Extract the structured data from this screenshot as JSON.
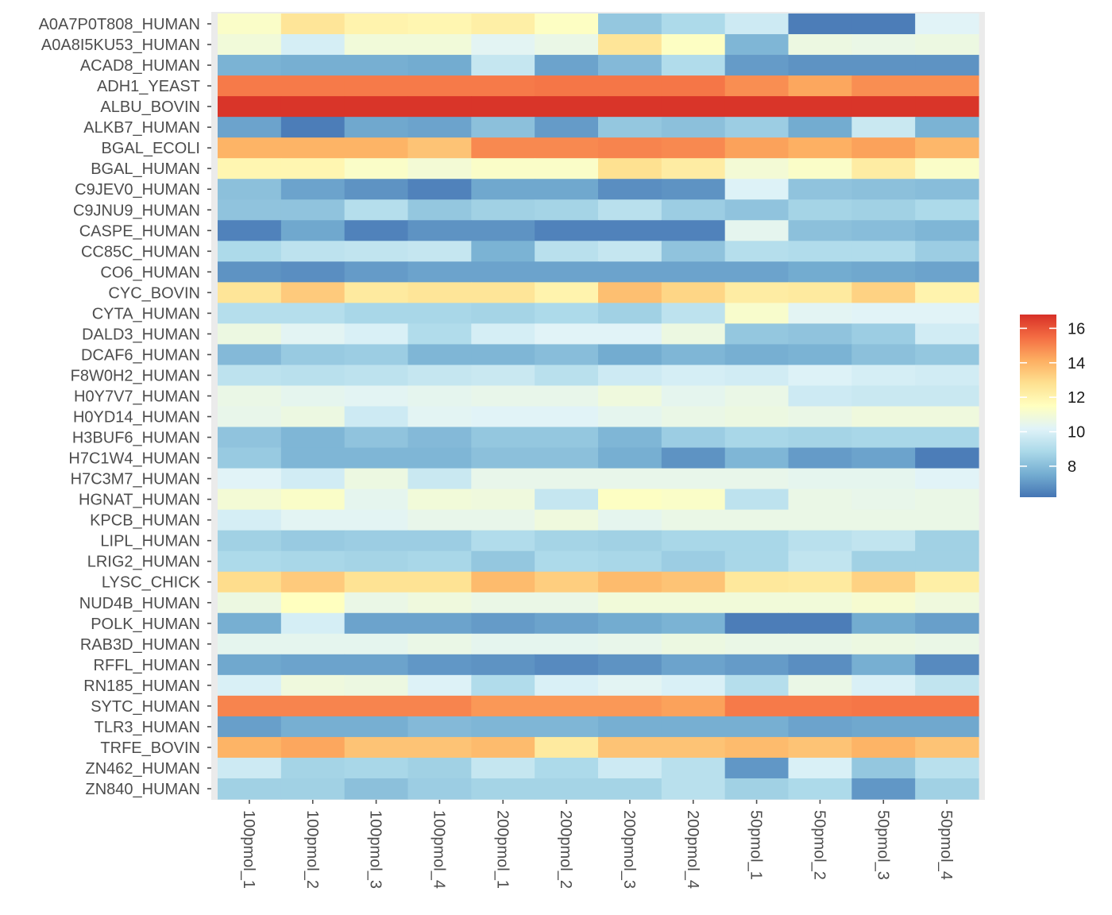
{
  "chart_data": {
    "type": "heatmap",
    "title": "",
    "xlabel": "",
    "ylabel": "",
    "legend": {
      "position": "right",
      "title": "",
      "ticks": [
        8,
        10,
        12,
        14,
        16
      ],
      "range": [
        6.2,
        16.8
      ]
    },
    "colorscale": [
      "#4575b4",
      "#74add1",
      "#abd9e9",
      "#e0f3f8",
      "#ffffbf",
      "#fee090",
      "#fdae61",
      "#f46d43",
      "#d73027"
    ],
    "x_categories": [
      "100pmol_1",
      "100pmol_2",
      "100pmol_3",
      "100pmol_4",
      "200pmol_1",
      "200pmol_2",
      "200pmol_3",
      "200pmol_4",
      "50pmol_1",
      "50pmol_2",
      "50pmol_3",
      "50pmol_4"
    ],
    "y_categories": [
      "A0A7P0T808_HUMAN",
      "A0A8I5KU53_HUMAN",
      "ACAD8_HUMAN",
      "ADH1_YEAST",
      "ALBU_BOVIN",
      "ALKB7_HUMAN",
      "BGAL_ECOLI",
      "BGAL_HUMAN",
      "C9JEV0_HUMAN",
      "C9JNU9_HUMAN",
      "CASPE_HUMAN",
      "CC85C_HUMAN",
      "CO6_HUMAN",
      "CYC_BOVIN",
      "CYTA_HUMAN",
      "DALD3_HUMAN",
      "DCAF6_HUMAN",
      "F8W0H2_HUMAN",
      "H0Y7V7_HUMAN",
      "H0YD14_HUMAN",
      "H3BUF6_HUMAN",
      "H7C1W4_HUMAN",
      "H7C3M7_HUMAN",
      "HGNAT_HUMAN",
      "KPCB_HUMAN",
      "LIPL_HUMAN",
      "LRIG2_HUMAN",
      "LYSC_CHICK",
      "NUD4B_HUMAN",
      "POLK_HUMAN",
      "RAB3D_HUMAN",
      "RFFL_HUMAN",
      "RN185_HUMAN",
      "SYTC_HUMAN",
      "TLR3_HUMAN",
      "TRFE_BOVIN",
      "ZN462_HUMAN",
      "ZN840_HUMAN"
    ],
    "values": [
      [
        11.3,
        12.6,
        12.0,
        11.9,
        12.2,
        11.4,
        8.3,
        8.9,
        9.7,
        6.4,
        6.4,
        10.2
      ],
      [
        10.9,
        9.9,
        10.9,
        10.9,
        10.3,
        10.6,
        12.6,
        11.4,
        7.8,
        10.7,
        10.6,
        10.7
      ],
      [
        7.7,
        7.6,
        7.6,
        7.5,
        9.5,
        7.3,
        7.9,
        9.0,
        7.1,
        6.9,
        6.9,
        6.9
      ],
      [
        15.2,
        15.2,
        15.2,
        15.2,
        15.2,
        15.3,
        15.3,
        15.3,
        14.8,
        14.3,
        14.8,
        14.8
      ],
      [
        16.7,
        16.7,
        16.7,
        16.7,
        16.7,
        16.7,
        16.7,
        16.7,
        16.7,
        16.7,
        16.7,
        16.7
      ],
      [
        7.3,
        6.4,
        7.4,
        7.3,
        8.1,
        7.1,
        8.3,
        8.1,
        8.5,
        7.5,
        9.6,
        7.7
      ],
      [
        14.0,
        14.0,
        14.0,
        13.6,
        14.9,
        14.9,
        15.0,
        14.9,
        14.4,
        14.1,
        14.4,
        13.9
      ],
      [
        11.9,
        11.9,
        11.3,
        11.0,
        11.3,
        11.3,
        12.8,
        12.3,
        11.0,
        11.3,
        12.3,
        11.3
      ],
      [
        8.1,
        7.3,
        6.9,
        6.5,
        7.4,
        7.4,
        6.8,
        6.9,
        10.1,
        8.2,
        8.1,
        8.0
      ],
      [
        8.2,
        8.2,
        9.1,
        8.3,
        8.6,
        8.7,
        9.2,
        8.5,
        8.2,
        8.7,
        8.6,
        8.9
      ],
      [
        6.5,
        7.4,
        6.5,
        6.9,
        6.9,
        6.5,
        6.5,
        6.5,
        10.4,
        8.1,
        8.0,
        7.8
      ],
      [
        8.9,
        9.3,
        9.4,
        9.5,
        7.7,
        9.2,
        9.5,
        8.2,
        9.1,
        9.0,
        9.0,
        8.5
      ],
      [
        6.9,
        6.8,
        7.1,
        7.3,
        7.3,
        7.3,
        7.3,
        7.3,
        7.3,
        7.5,
        7.4,
        7.3
      ],
      [
        12.6,
        13.4,
        12.4,
        12.6,
        12.6,
        12.0,
        13.7,
        13.1,
        12.3,
        12.4,
        13.2,
        12.0
      ],
      [
        9.1,
        9.1,
        8.8,
        8.8,
        8.7,
        8.9,
        8.6,
        9.3,
        11.2,
        10.3,
        10.2,
        10.2
      ],
      [
        10.7,
        10.3,
        10.0,
        9.0,
        9.9,
        10.2,
        10.2,
        10.7,
        8.3,
        8.2,
        8.5,
        9.8
      ],
      [
        7.9,
        8.4,
        8.5,
        7.8,
        7.8,
        8.0,
        7.5,
        7.8,
        7.6,
        7.7,
        8.1,
        8.3
      ],
      [
        9.3,
        9.2,
        9.3,
        9.5,
        9.6,
        9.2,
        9.7,
        9.9,
        9.8,
        10.1,
        9.9,
        9.8
      ],
      [
        10.6,
        10.4,
        10.3,
        10.4,
        10.5,
        10.5,
        10.8,
        10.4,
        10.6,
        9.7,
        9.6,
        9.6
      ],
      [
        10.5,
        10.7,
        9.7,
        10.3,
        10.2,
        10.2,
        10.4,
        10.6,
        10.7,
        10.6,
        10.8,
        10.8
      ],
      [
        8.2,
        7.8,
        8.2,
        7.9,
        8.3,
        8.3,
        7.8,
        8.5,
        8.8,
        8.7,
        8.8,
        8.8
      ],
      [
        8.4,
        7.8,
        7.8,
        7.8,
        8.1,
        8.1,
        7.6,
        6.9,
        7.8,
        7.1,
        7.3,
        6.4
      ],
      [
        10.2,
        9.8,
        10.7,
        9.6,
        10.5,
        10.5,
        10.5,
        10.5,
        10.5,
        10.4,
        10.4,
        10.2
      ],
      [
        11.0,
        11.3,
        10.4,
        10.9,
        10.8,
        9.5,
        11.4,
        11.3,
        9.3,
        10.6,
        10.5,
        10.6
      ],
      [
        9.9,
        10.3,
        10.3,
        10.5,
        10.5,
        10.8,
        10.4,
        10.6,
        10.6,
        10.6,
        10.6,
        10.6
      ],
      [
        8.6,
        8.4,
        8.5,
        8.5,
        9.0,
        8.7,
        8.6,
        8.8,
        8.8,
        9.2,
        9.4,
        8.6
      ],
      [
        8.9,
        8.8,
        8.7,
        8.8,
        8.3,
        8.9,
        8.8,
        8.5,
        8.8,
        9.4,
        8.6,
        8.6
      ],
      [
        12.9,
        13.4,
        12.7,
        12.7,
        13.8,
        13.3,
        13.8,
        13.6,
        12.5,
        12.4,
        13.2,
        12.2
      ],
      [
        10.7,
        11.5,
        10.6,
        10.8,
        10.6,
        10.6,
        10.9,
        10.9,
        10.9,
        10.9,
        11.1,
        10.8
      ],
      [
        7.6,
        9.9,
        7.3,
        7.3,
        7.1,
        7.3,
        7.5,
        7.7,
        6.4,
        6.4,
        7.5,
        7.2
      ],
      [
        10.4,
        10.4,
        10.4,
        10.6,
        10.4,
        10.4,
        10.5,
        10.7,
        10.6,
        10.6,
        10.7,
        10.6
      ],
      [
        7.4,
        7.3,
        7.3,
        7.0,
        6.9,
        6.7,
        6.9,
        7.3,
        7.1,
        6.8,
        7.6,
        6.7
      ],
      [
        10.0,
        10.8,
        10.7,
        10.1,
        9.0,
        10.0,
        10.3,
        10.0,
        9.1,
        10.6,
        10.0,
        9.4
      ],
      [
        15.0,
        15.0,
        15.0,
        15.0,
        14.6,
        14.6,
        14.6,
        14.4,
        15.2,
        15.2,
        15.3,
        15.3
      ],
      [
        7.2,
        7.6,
        7.6,
        7.9,
        7.8,
        7.8,
        7.6,
        7.6,
        7.6,
        7.3,
        7.4,
        7.4
      ],
      [
        14.0,
        14.3,
        13.6,
        13.6,
        13.8,
        12.4,
        13.6,
        13.6,
        13.8,
        13.6,
        14.0,
        13.6
      ],
      [
        9.7,
        8.7,
        8.8,
        8.6,
        9.5,
        8.9,
        9.7,
        9.2,
        7.0,
        10.0,
        8.3,
        9.2
      ],
      [
        8.6,
        8.6,
        8.1,
        8.5,
        8.7,
        8.7,
        8.7,
        9.2,
        8.6,
        8.9,
        7.0,
        8.6
      ]
    ]
  }
}
